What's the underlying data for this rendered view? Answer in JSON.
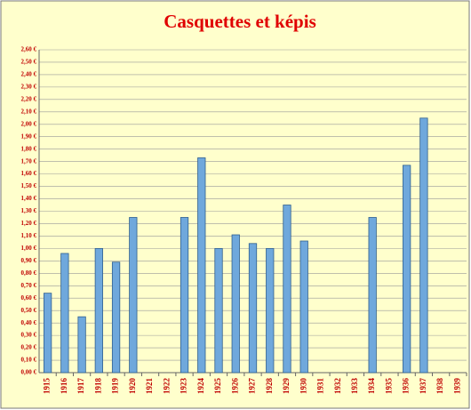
{
  "chart_data": {
    "type": "bar",
    "title": "Casquettes et képis",
    "categories": [
      "1915",
      "1916",
      "1917",
      "1918",
      "1919",
      "1920",
      "1921",
      "1922",
      "1923",
      "1924",
      "1925",
      "1926",
      "1927",
      "1928",
      "1929",
      "1930",
      "1931",
      "1932",
      "1933",
      "1934",
      "1935",
      "1936",
      "1937",
      "1938",
      "1939"
    ],
    "values": [
      0.64,
      0.96,
      0.45,
      1.0,
      0.89,
      1.25,
      null,
      null,
      1.25,
      1.73,
      1.0,
      1.11,
      1.04,
      1.0,
      1.35,
      1.06,
      null,
      null,
      null,
      1.25,
      null,
      1.67,
      2.05,
      null,
      null
    ],
    "color": "#6fa8dc",
    "ylim": [
      0,
      2.6
    ],
    "yticks": [
      {
        "value": 0,
        "label": "0,00 €"
      },
      {
        "value": 0.1,
        "label": "0,10 €"
      },
      {
        "value": 0.2,
        "label": "0,20 €"
      },
      {
        "value": 0.3,
        "label": "0,30 €"
      },
      {
        "value": 0.4,
        "label": "0,40 €"
      },
      {
        "value": 0.5,
        "label": "0,50 €"
      },
      {
        "value": 0.6,
        "label": "0,60 €"
      },
      {
        "value": 0.7,
        "label": "0,70 €"
      },
      {
        "value": 0.8,
        "label": "0,80 €"
      },
      {
        "value": 0.9,
        "label": "0,90 €"
      },
      {
        "value": 1.0,
        "label": "1,00 €"
      },
      {
        "value": 1.1,
        "label": "1,10 €"
      },
      {
        "value": 1.2,
        "label": "1,20 €"
      },
      {
        "value": 1.3,
        "label": "1,30 €"
      },
      {
        "value": 1.4,
        "label": "1,40 €"
      },
      {
        "value": 1.5,
        "label": "1,50 €"
      },
      {
        "value": 1.6,
        "label": "1,60 €"
      },
      {
        "value": 1.7,
        "label": "1,70 €"
      },
      {
        "value": 1.8,
        "label": "1,80 €"
      },
      {
        "value": 1.9,
        "label": "1,90 €"
      },
      {
        "value": 2.0,
        "label": "2,00 €"
      },
      {
        "value": 2.1,
        "label": "2,10 €"
      },
      {
        "value": 2.2,
        "label": "2,20 €"
      },
      {
        "value": 2.3,
        "label": "2,30 €"
      },
      {
        "value": 2.4,
        "label": "2,40 €"
      },
      {
        "value": 2.5,
        "label": "2,50 €"
      },
      {
        "value": 2.6,
        "label": "2,60 €"
      }
    ],
    "grid": true
  }
}
